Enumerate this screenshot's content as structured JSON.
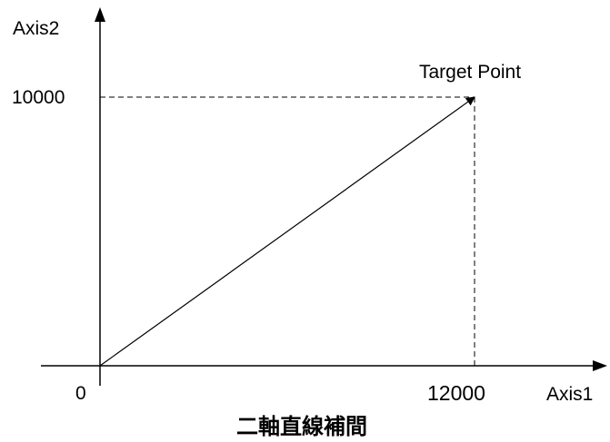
{
  "labels": {
    "y_axis": "Axis2",
    "x_axis": "Axis1",
    "origin": "0",
    "target_point": "Target Point",
    "caption": "二軸直線補間"
  },
  "chart_data": {
    "type": "line",
    "x_target": 12000,
    "y_target": 10000,
    "x_tick_label": "12000",
    "y_tick_label": "10000"
  },
  "colors": {
    "line": "#000000",
    "background": "#ffffff"
  }
}
